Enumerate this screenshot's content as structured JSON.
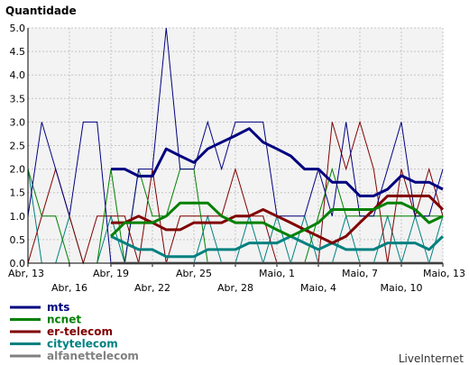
{
  "chart_data": {
    "type": "line",
    "title": "Quantidade",
    "ylim": [
      0,
      5
    ],
    "yticks": [
      "0.0",
      "0.5",
      "1.0",
      "1.5",
      "2.0",
      "2.5",
      "3.0",
      "3.5",
      "4.0",
      "4.5",
      "5.0"
    ],
    "categories": [
      "Abr, 13",
      "Abr, 14",
      "Abr, 15",
      "Abr, 16",
      "Abr, 17",
      "Abr, 18",
      "Abr, 19",
      "Abr, 20",
      "Abr, 21",
      "Abr, 22",
      "Abr, 23",
      "Abr, 24",
      "Abr, 25",
      "Abr, 26",
      "Abr, 27",
      "Abr, 28",
      "Abr, 29",
      "Abr, 30",
      "Maio, 1",
      "Maio, 2",
      "Maio, 3",
      "Maio, 4",
      "Maio, 5",
      "Maio, 6",
      "Maio, 7",
      "Maio, 8",
      "Maio, 9",
      "Maio, 10",
      "Maio, 11",
      "Maio, 12",
      "Maio, 13"
    ],
    "xtick_labels": [
      {
        "i": 0,
        "text": "Abr, 13",
        "row": 1
      },
      {
        "i": 3,
        "text": "Abr, 16",
        "row": 2
      },
      {
        "i": 6,
        "text": "Abr, 19",
        "row": 1
      },
      {
        "i": 9,
        "text": "Abr, 22",
        "row": 2
      },
      {
        "i": 12,
        "text": "Abr, 25",
        "row": 1
      },
      {
        "i": 15,
        "text": "Abr, 28",
        "row": 2
      },
      {
        "i": 18,
        "text": "Maio, 1",
        "row": 1
      },
      {
        "i": 21,
        "text": "Maio, 4",
        "row": 2
      },
      {
        "i": 24,
        "text": "Maio, 7",
        "row": 1
      },
      {
        "i": 27,
        "text": "Maio, 10",
        "row": 2
      },
      {
        "i": 30,
        "text": "Maio, 13",
        "row": 1
      }
    ],
    "grid": true,
    "series": [
      {
        "name": "mts",
        "color": "#000080",
        "raw": [
          1,
          3,
          2,
          1,
          3,
          3,
          0,
          0,
          2,
          2,
          5,
          2,
          2,
          3,
          2,
          3,
          3,
          3,
          1,
          1,
          1,
          2,
          1,
          3,
          1,
          1,
          2,
          3,
          1,
          1,
          2
        ],
        "avg": [
          null,
          null,
          null,
          null,
          null,
          null,
          2,
          2,
          1.85,
          1.85,
          2.43,
          2.28,
          2.14,
          2.43,
          2.57,
          2.71,
          2.86,
          2.57,
          2.43,
          2.28,
          2.0,
          2.0,
          1.72,
          1.72,
          1.43,
          1.43,
          1.57,
          1.86,
          1.72,
          1.72,
          1.57
        ]
      },
      {
        "name": "ncnet",
        "color": "#008000",
        "raw": [
          2,
          1,
          1,
          0,
          0,
          0,
          2,
          0,
          2,
          1,
          1,
          2,
          2,
          0,
          0,
          0,
          0,
          0,
          0,
          0,
          0,
          1,
          2,
          1,
          1,
          1,
          1,
          1,
          1,
          1,
          1
        ],
        "avg": [
          null,
          null,
          null,
          null,
          null,
          null,
          0.57,
          0.86,
          0.86,
          0.86,
          1.0,
          1.28,
          1.28,
          1.28,
          1.0,
          0.86,
          0.86,
          0.86,
          0.71,
          0.57,
          0.71,
          0.86,
          1.14,
          1.14,
          1.14,
          1.14,
          1.28,
          1.28,
          1.14,
          0.86,
          1.0
        ]
      },
      {
        "name": "er-telecom",
        "color": "#800000",
        "raw": [
          0,
          1,
          2,
          1,
          0,
          1,
          1,
          1,
          0,
          2,
          0,
          1,
          1,
          1,
          1,
          2,
          1,
          1,
          0,
          0,
          0,
          0,
          3,
          2,
          3,
          2,
          0,
          2,
          1,
          2,
          1
        ],
        "avg": [
          null,
          null,
          null,
          null,
          null,
          null,
          0.86,
          0.86,
          1.0,
          0.86,
          0.71,
          0.71,
          0.86,
          0.86,
          0.86,
          1.0,
          1.0,
          1.14,
          1.0,
          0.86,
          0.71,
          0.57,
          0.43,
          0.57,
          0.86,
          1.14,
          1.43,
          1.43,
          1.43,
          1.43,
          1.14
        ]
      },
      {
        "name": "citytelecom",
        "color": "#008080",
        "raw": [
          2,
          0,
          0,
          1,
          0,
          0,
          1,
          0,
          0,
          0,
          0,
          0,
          0,
          1,
          0,
          0,
          1,
          0,
          1,
          0,
          1,
          0,
          0,
          1,
          0,
          0,
          1,
          0,
          1,
          0,
          1
        ],
        "avg": [
          null,
          null,
          null,
          null,
          null,
          null,
          0.57,
          0.43,
          0.29,
          0.29,
          0.14,
          0.14,
          0.14,
          0.29,
          0.29,
          0.29,
          0.43,
          0.43,
          0.43,
          0.57,
          0.43,
          0.29,
          0.43,
          0.29,
          0.29,
          0.29,
          0.43,
          0.43,
          0.43,
          0.29,
          0.57
        ]
      },
      {
        "name": "alfanettelecom",
        "color": "#808080",
        "raw": [
          0,
          0,
          0,
          0,
          0,
          0,
          0,
          0,
          0,
          0,
          0,
          0,
          0,
          0,
          0,
          0,
          0,
          0,
          0,
          0,
          0,
          0,
          0,
          0,
          0,
          0,
          0,
          0,
          0,
          0,
          0
        ],
        "avg": [
          null,
          null,
          null,
          null,
          null,
          null,
          0,
          0,
          0,
          0,
          0,
          0,
          0,
          0,
          0,
          0,
          0,
          0,
          0,
          0,
          0,
          0,
          0,
          0,
          0,
          0,
          0,
          0,
          0,
          0,
          0
        ]
      }
    ]
  },
  "credit": "LiveInternet"
}
